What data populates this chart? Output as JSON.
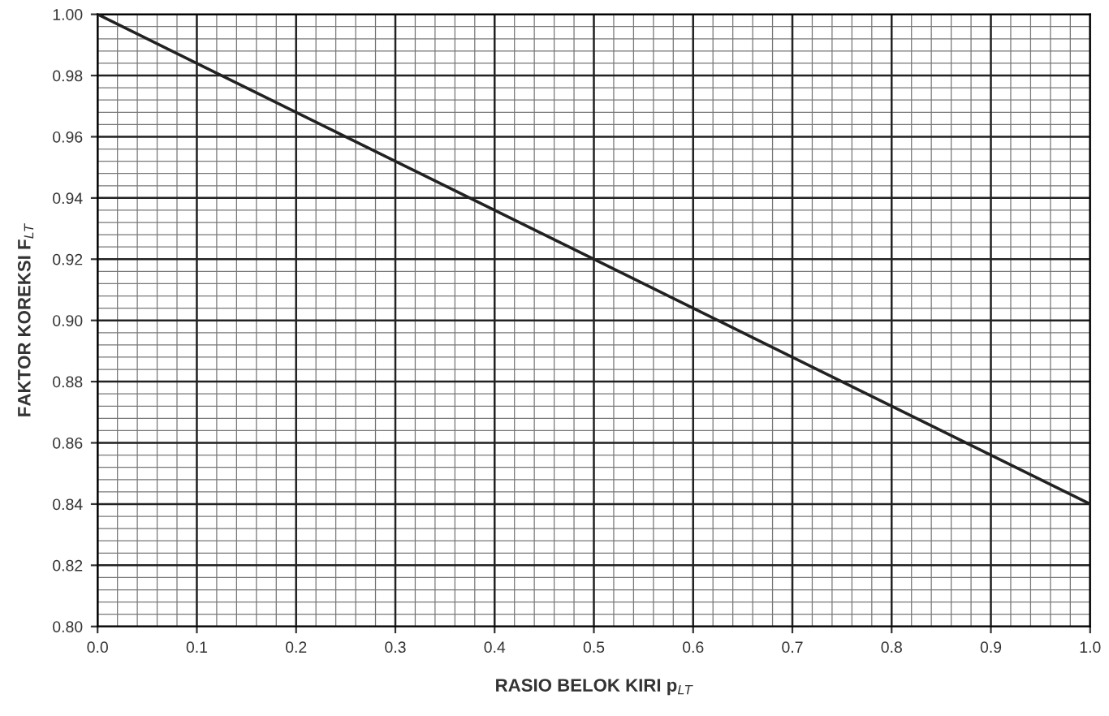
{
  "chart_data": {
    "type": "line",
    "xlabel": "RASIO BELOK KIRI p$_{LT}$",
    "ylabel": "FAKTOR KOREKSI F$_{LT}$",
    "x": [
      0.0,
      1.0
    ],
    "series": [
      {
        "color": "#222222",
        "values": [
          1.0,
          0.84
        ]
      }
    ],
    "xlim": [
      0.0,
      1.0
    ],
    "ylim": [
      0.8,
      1.0
    ],
    "xticks": [
      {
        "value": 0.0,
        "label": "0.0"
      },
      0.1,
      0.2,
      0.3,
      0.4,
      0.5,
      0.6,
      0.7,
      0.8,
      0.9,
      {
        "value": 1.0,
        "label": "1.0"
      }
    ],
    "yticks": [
      {
        "value": 0.8,
        "label": "0.80"
      },
      {
        "value": 0.82,
        "label": "0.82"
      },
      {
        "value": 0.84,
        "label": "0.84"
      },
      {
        "value": 0.86,
        "label": "0.86"
      },
      {
        "value": 0.88,
        "label": "0.88"
      },
      {
        "value": 0.9,
        "label": "0.90"
      },
      {
        "value": 0.92,
        "label": "0.92"
      },
      {
        "value": 0.94,
        "label": "0.94"
      },
      {
        "value": 0.96,
        "label": "0.96"
      },
      {
        "value": 0.98,
        "label": "0.98"
      },
      {
        "value": 1.0,
        "label": "1.00"
      }
    ],
    "grid": true,
    "marker": "none",
    "line_style": "solid",
    "legend": false
  }
}
